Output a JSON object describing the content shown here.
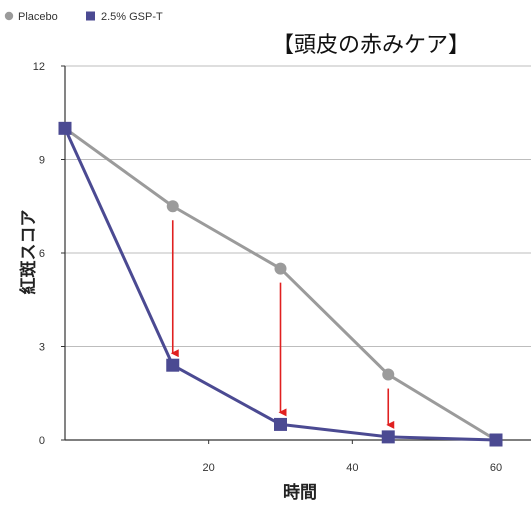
{
  "chart_data": {
    "type": "line",
    "title": "【頭皮の赤みケア】",
    "xlabel": "時間",
    "ylabel": "紅斑スコア",
    "xlim": [
      0,
      60
    ],
    "ylim": [
      0,
      12
    ],
    "xticks": [
      20,
      40,
      60
    ],
    "yticks": [
      0,
      3,
      6,
      9,
      12
    ],
    "grid": "horizontal",
    "legend_position": "top-left",
    "series": [
      {
        "name": "Placebo",
        "color": "#9b9b9b",
        "marker": "circle",
        "x": [
          0,
          15,
          30,
          45,
          60
        ],
        "y": [
          10,
          7.5,
          5.5,
          2.1,
          0
        ]
      },
      {
        "name": "2.5% GSP-T",
        "color": "#4b4a92",
        "marker": "square",
        "x": [
          0,
          15,
          30,
          45,
          60
        ],
        "y": [
          10,
          2.4,
          0.5,
          0.1,
          0
        ]
      }
    ],
    "annotations": {
      "arrow_color": "#e02020",
      "arrows_at_x": [
        15,
        30,
        45
      ]
    }
  }
}
